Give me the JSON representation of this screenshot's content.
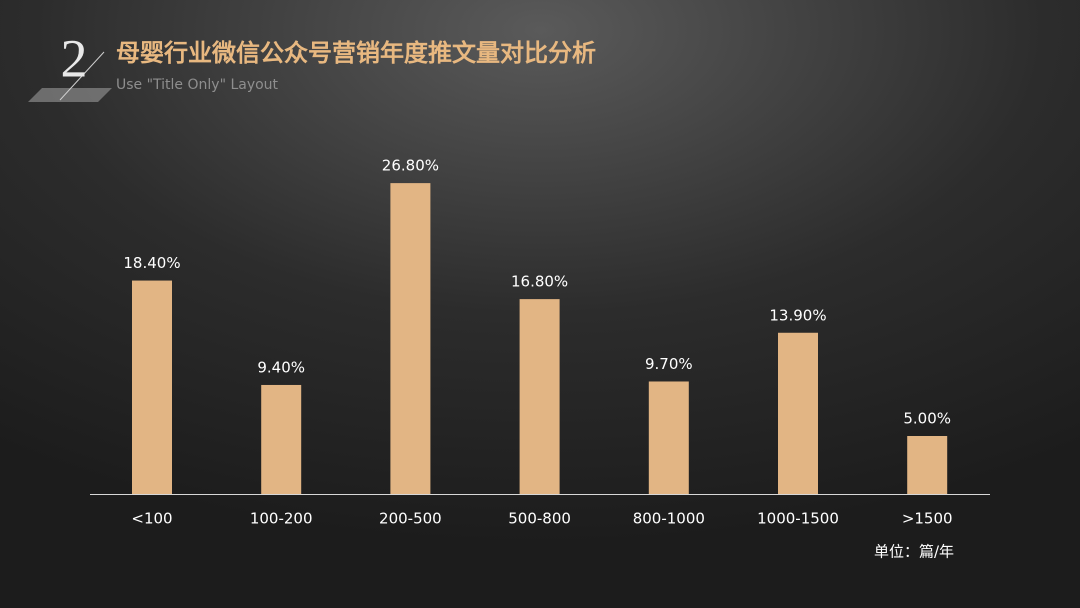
{
  "chart_data": {
    "type": "bar",
    "slide_number": 2,
    "title": "母婴行业微信公众号营销年度推文量对比分析",
    "subtitle": "Use \"Title Only\" Layout",
    "note": "单位：篇/年",
    "categories": [
      "<100",
      "100-200",
      "200-500",
      "500-800",
      "800-1000",
      "1000-1500",
      ">1500"
    ],
    "values": [
      18.4,
      9.4,
      26.8,
      16.8,
      9.7,
      13.9,
      5.0
    ],
    "value_labels": [
      "18.40%",
      "9.40%",
      "26.80%",
      "16.80%",
      "9.70%",
      "13.90%",
      "5.00%"
    ],
    "color": "#e2b584"
  }
}
